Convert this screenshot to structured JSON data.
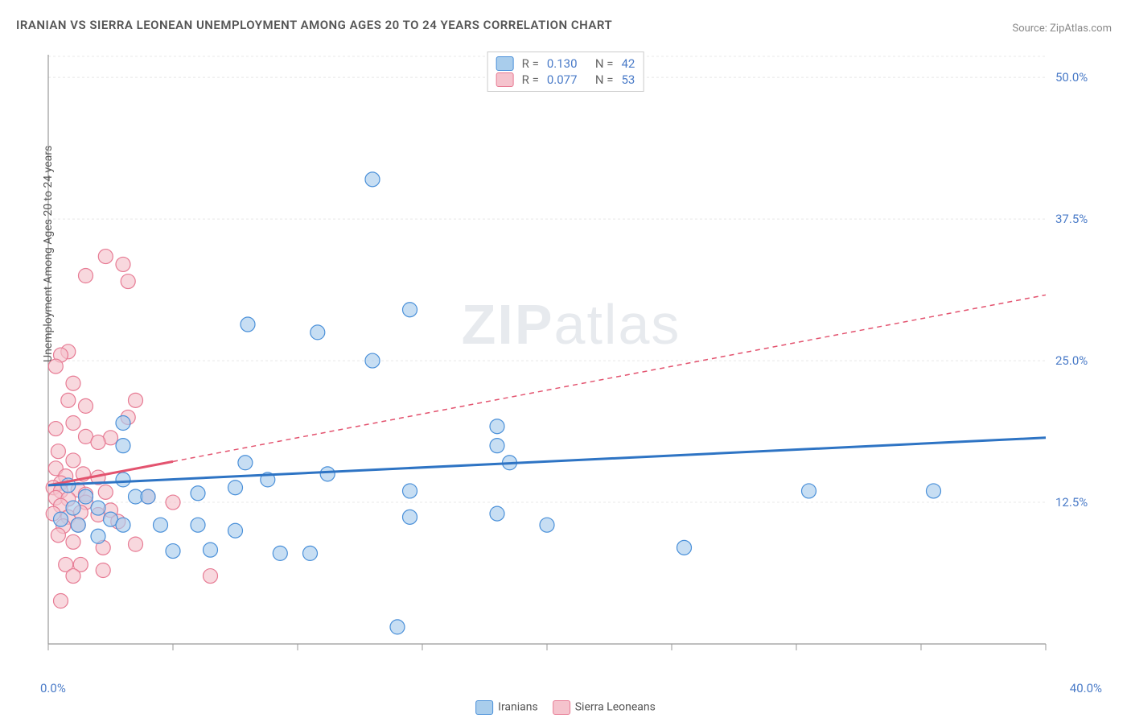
{
  "title": "IRANIAN VS SIERRA LEONEAN UNEMPLOYMENT AMONG AGES 20 TO 24 YEARS CORRELATION CHART",
  "source": "Source: ZipAtlas.com",
  "watermark_bold": "ZIP",
  "watermark_light": "atlas",
  "ylabel": "Unemployment Among Ages 20 to 24 years",
  "legend": {
    "series1": "Iranians",
    "series2": "Sierra Leoneans"
  },
  "stats": {
    "r_label": "R  =",
    "n_label": "N  =",
    "series1": {
      "r": "0.130",
      "n": "42"
    },
    "series2": {
      "r": "0.077",
      "n": "53"
    }
  },
  "axes": {
    "xmin": 0,
    "xmax": 40,
    "ymin": 0,
    "ymax": 52,
    "x_origin_label": "0.0%",
    "x_max_label": "40.0%",
    "y_labels": [
      {
        "v": 12.5,
        "text": "12.5%"
      },
      {
        "v": 25.0,
        "text": "25.0%"
      },
      {
        "v": 37.5,
        "text": "37.5%"
      },
      {
        "v": 50.0,
        "text": "50.0%"
      }
    ],
    "x_ticks": [
      0,
      5,
      10,
      15,
      20,
      25,
      30,
      35,
      40
    ],
    "grid_color": "#e8e8e8",
    "axis_color": "#999"
  },
  "colors": {
    "series1_fill": "#a9cdec",
    "series1_stroke": "#4a90d9",
    "series1_line": "#2e74c4",
    "series2_fill": "#f5c3cd",
    "series2_stroke": "#e77b94",
    "series2_line": "#e3536f",
    "value_text": "#4a7bc8",
    "label_text": "#666"
  },
  "marker_radius": 9,
  "marker_opacity": 0.65,
  "trend_lines": {
    "series1": {
      "x1": 0,
      "y1": 14.0,
      "x2": 40,
      "y2": 18.2,
      "width": 3,
      "dash": ""
    },
    "series1_ext": {
      "x1": 0,
      "y1": 14.0,
      "x2": 40,
      "y2": 18.2
    },
    "series2_solid": {
      "x1": 0,
      "y1": 14.0,
      "x2": 5,
      "y2": 16.1,
      "width": 3
    },
    "series2_dash": {
      "x1": 5,
      "y1": 16.1,
      "x2": 40,
      "y2": 30.8,
      "dash": "6,5",
      "width": 1.5
    }
  },
  "series1_points": [
    [
      13.0,
      41.0
    ],
    [
      8.0,
      28.2
    ],
    [
      10.8,
      27.5
    ],
    [
      14.5,
      29.5
    ],
    [
      13.0,
      25.0
    ],
    [
      18.0,
      19.2
    ],
    [
      3.0,
      19.5
    ],
    [
      3.0,
      17.5
    ],
    [
      7.9,
      16.0
    ],
    [
      8.8,
      14.5
    ],
    [
      11.2,
      15.0
    ],
    [
      14.5,
      13.5
    ],
    [
      14.5,
      11.2
    ],
    [
      18.0,
      17.5
    ],
    [
      18.5,
      16.0
    ],
    [
      18.0,
      11.5
    ],
    [
      7.5,
      13.8
    ],
    [
      3.0,
      14.5
    ],
    [
      3.5,
      13.0
    ],
    [
      2.0,
      12.0
    ],
    [
      2.5,
      11.0
    ],
    [
      5.0,
      8.2
    ],
    [
      6.5,
      8.3
    ],
    [
      9.3,
      8.0
    ],
    [
      10.5,
      8.0
    ],
    [
      6.0,
      10.5
    ],
    [
      7.5,
      10.0
    ],
    [
      4.5,
      10.5
    ],
    [
      3.0,
      10.5
    ],
    [
      2.0,
      9.5
    ],
    [
      1.2,
      10.5
    ],
    [
      1.5,
      13.0
    ],
    [
      1.0,
      12.0
    ],
    [
      0.8,
      14.0
    ],
    [
      0.5,
      11.0
    ],
    [
      20.0,
      10.5
    ],
    [
      25.5,
      8.5
    ],
    [
      30.5,
      13.5
    ],
    [
      35.5,
      13.5
    ],
    [
      14.0,
      1.5
    ],
    [
      4.0,
      13.0
    ],
    [
      6.0,
      13.3
    ]
  ],
  "series2_points": [
    [
      2.3,
      34.2
    ],
    [
      1.5,
      32.5
    ],
    [
      3.0,
      33.5
    ],
    [
      3.2,
      32.0
    ],
    [
      0.8,
      25.8
    ],
    [
      0.5,
      25.5
    ],
    [
      0.3,
      24.5
    ],
    [
      1.0,
      23.0
    ],
    [
      0.8,
      21.5
    ],
    [
      1.5,
      21.0
    ],
    [
      1.0,
      19.5
    ],
    [
      0.3,
      19.0
    ],
    [
      1.5,
      18.3
    ],
    [
      2.5,
      18.2
    ],
    [
      2.0,
      17.8
    ],
    [
      0.4,
      17.0
    ],
    [
      1.0,
      16.2
    ],
    [
      3.5,
      21.5
    ],
    [
      3.2,
      20.0
    ],
    [
      0.3,
      15.5
    ],
    [
      0.7,
      14.8
    ],
    [
      1.4,
      15.0
    ],
    [
      2.0,
      14.7
    ],
    [
      0.5,
      14.2
    ],
    [
      0.2,
      13.8
    ],
    [
      0.5,
      13.5
    ],
    [
      1.2,
      13.6
    ],
    [
      1.5,
      13.2
    ],
    [
      2.3,
      13.4
    ],
    [
      0.3,
      12.9
    ],
    [
      0.8,
      12.8
    ],
    [
      1.5,
      12.5
    ],
    [
      0.5,
      12.2
    ],
    [
      0.2,
      11.5
    ],
    [
      0.8,
      11.2
    ],
    [
      1.3,
      11.6
    ],
    [
      2.0,
      11.4
    ],
    [
      0.6,
      10.4
    ],
    [
      1.2,
      10.5
    ],
    [
      2.5,
      11.8
    ],
    [
      2.8,
      10.8
    ],
    [
      1.0,
      9.0
    ],
    [
      2.2,
      8.5
    ],
    [
      3.5,
      8.8
    ],
    [
      0.4,
      9.6
    ],
    [
      0.7,
      7.0
    ],
    [
      1.3,
      7.0
    ],
    [
      1.0,
      6.0
    ],
    [
      2.2,
      6.5
    ],
    [
      6.5,
      6.0
    ],
    [
      0.5,
      3.8
    ],
    [
      4.0,
      13.0
    ],
    [
      5.0,
      12.5
    ]
  ]
}
